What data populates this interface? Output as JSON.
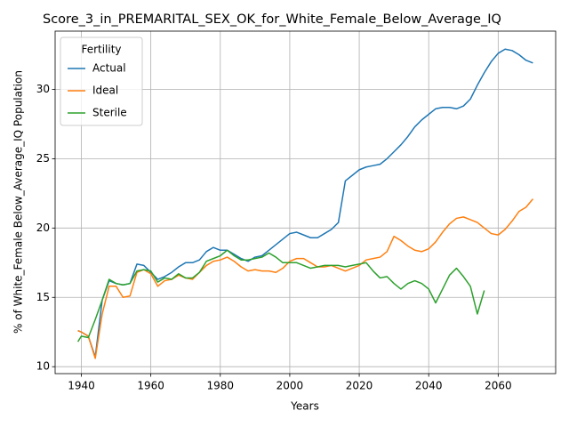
{
  "chart_data": {
    "type": "line",
    "title": "Score_3_in_PREMARITAL_SEX_OK_for_White_Female_Below_Average_IQ",
    "x_label": "Years",
    "y_label": "% of White_Female Below_Average_IQ Population",
    "legend_title": "Fertility",
    "legend_position": "upper left",
    "grid": true,
    "xlim": [
      1932.45,
      2076.55
    ],
    "ylim": [
      9.5,
      34.2
    ],
    "xticks": [
      1940,
      1960,
      1980,
      2000,
      2020,
      2040,
      2060
    ],
    "yticks": [
      10,
      15,
      20,
      25,
      30
    ],
    "x": [
      1939,
      1940,
      1942,
      1944,
      1946,
      1948,
      1950,
      1952,
      1954,
      1956,
      1958,
      1960,
      1962,
      1964,
      1966,
      1968,
      1970,
      1972,
      1974,
      1976,
      1978,
      1980,
      1982,
      1984,
      1986,
      1988,
      1990,
      1992,
      1994,
      1996,
      1998,
      2000,
      2002,
      2004,
      2006,
      2008,
      2010,
      2012,
      2014,
      2016,
      2018,
      2020,
      2022,
      2024,
      2026,
      2028,
      2030,
      2032,
      2034,
      2036,
      2038,
      2040,
      2042,
      2044,
      2046,
      2048,
      2050,
      2052,
      2054,
      2056,
      2058,
      2060,
      2062,
      2064,
      2066,
      2068,
      2070
    ],
    "series": [
      {
        "name": "Actual",
        "color": "#1f77b4",
        "values": [
          12.6,
          12.5,
          12.2,
          10.7,
          14.8,
          16.2,
          16.0,
          15.9,
          16.0,
          17.4,
          17.3,
          16.8,
          16.3,
          16.5,
          16.8,
          17.2,
          17.5,
          17.5,
          17.7,
          18.3,
          18.6,
          18.4,
          18.4,
          18.1,
          17.8,
          17.6,
          17.9,
          18.0,
          18.4,
          18.8,
          19.2,
          19.6,
          19.7,
          19.5,
          19.3,
          19.3,
          19.6,
          19.9,
          20.4,
          23.4,
          23.8,
          24.2,
          24.4,
          24.5,
          24.6,
          25.0,
          25.5,
          26.0,
          26.6,
          27.3,
          27.8,
          28.2,
          28.6,
          28.7,
          28.7,
          28.6,
          28.8,
          29.3,
          30.3,
          31.2,
          32.0,
          32.6,
          32.9,
          32.8,
          32.5,
          32.1,
          31.9
        ]
      },
      {
        "name": "Ideal",
        "color": "#ff7f0e",
        "values": [
          12.6,
          12.5,
          12.2,
          10.6,
          13.8,
          15.8,
          15.8,
          15.0,
          15.1,
          16.8,
          17.0,
          16.7,
          15.8,
          16.2,
          16.3,
          16.6,
          16.4,
          16.3,
          16.8,
          17.3,
          17.6,
          17.7,
          17.9,
          17.6,
          17.2,
          16.9,
          17.0,
          16.9,
          16.9,
          16.8,
          17.1,
          17.6,
          17.8,
          17.8,
          17.5,
          17.2,
          17.2,
          17.3,
          17.1,
          16.9,
          17.1,
          17.3,
          17.7,
          17.8,
          17.9,
          18.3,
          19.4,
          19.1,
          18.7,
          18.4,
          18.3,
          18.5,
          19.0,
          19.7,
          20.3,
          20.7,
          20.8,
          20.6,
          20.4,
          20.0,
          19.6,
          19.5,
          19.9,
          20.5,
          21.2,
          21.5,
          22.1
        ]
      },
      {
        "name": "Sterile",
        "color": "#2ca02c",
        "values": [
          11.8,
          12.2,
          12.1,
          13.4,
          14.8,
          16.3,
          16.0,
          15.9,
          16.0,
          16.9,
          17.0,
          16.9,
          16.1,
          16.4,
          16.3,
          16.7,
          16.4,
          16.4,
          16.8,
          17.6,
          17.8,
          18.0,
          18.4,
          18.0,
          17.7,
          17.7,
          17.8,
          17.9,
          18.2,
          17.9,
          17.5,
          17.5,
          17.5,
          17.3,
          17.1,
          17.2,
          17.3,
          17.3,
          17.3,
          17.2,
          17.3,
          17.4,
          17.5,
          16.9,
          16.4,
          16.5,
          16.0,
          15.6,
          16.0,
          16.2,
          16.0,
          15.6,
          14.6,
          15.6,
          16.6,
          17.1,
          16.5,
          15.8,
          13.8,
          15.5,
          null,
          null,
          null,
          null,
          null,
          null,
          null
        ]
      }
    ]
  }
}
